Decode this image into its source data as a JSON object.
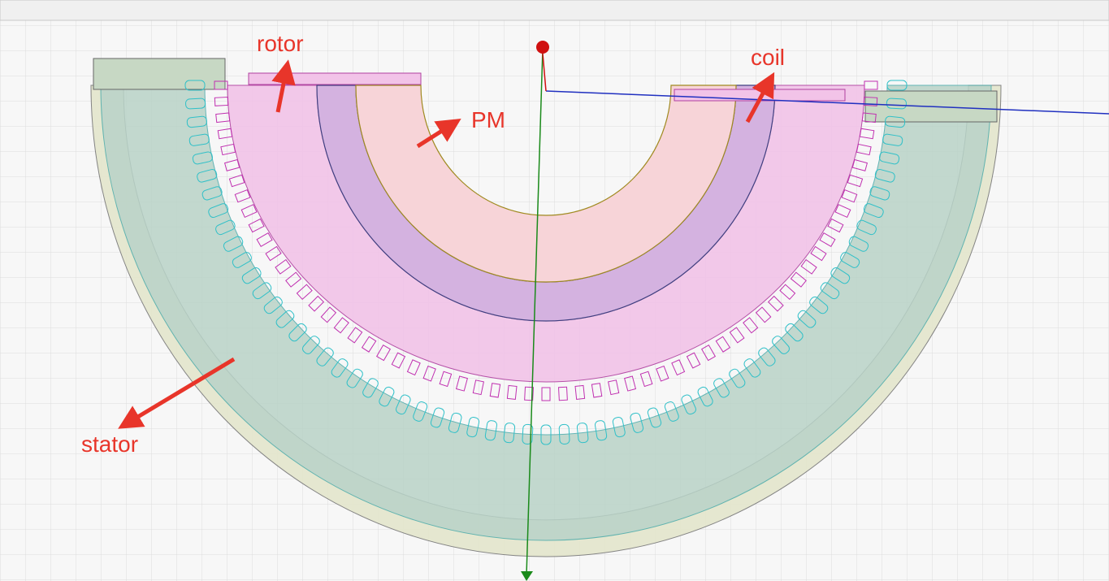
{
  "annotations": [
    {
      "label": "rotor"
    },
    {
      "label": "coil"
    },
    {
      "label": "PM"
    },
    {
      "label": "stator"
    }
  ]
}
